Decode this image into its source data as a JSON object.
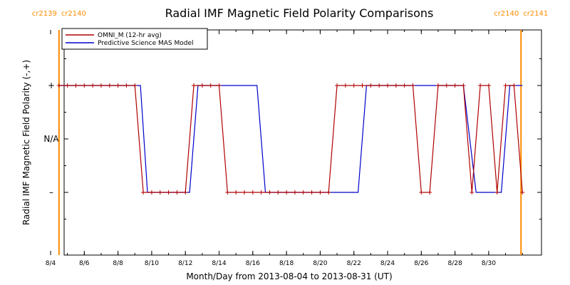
{
  "chart_data": {
    "type": "line",
    "title": "Radial IMF Magnetic Field Polarity Comparisons",
    "xlabel": "Month/Day from 2013-08-04 to 2013-08-31 (UT)",
    "ylabel": "Radial IMF Magnetic Field Polarity (-,+)",
    "xlim": [
      "2013-08-04",
      "2013-09-01"
    ],
    "ylim": [
      -2,
      2
    ],
    "x_ticks": [
      {
        "date": "2013-08-04",
        "label": "8/4"
      },
      {
        "date": "2013-08-06",
        "label": "8/6"
      },
      {
        "date": "2013-08-08",
        "label": "8/8"
      },
      {
        "date": "2013-08-10",
        "label": "8/10"
      },
      {
        "date": "2013-08-12",
        "label": "8/12"
      },
      {
        "date": "2013-08-14",
        "label": "8/14"
      },
      {
        "date": "2013-08-16",
        "label": "8/16"
      },
      {
        "date": "2013-08-18",
        "label": "8/18"
      },
      {
        "date": "2013-08-20",
        "label": "8/20"
      },
      {
        "date": "2013-08-22",
        "label": "8/22"
      },
      {
        "date": "2013-08-24",
        "label": "8/24"
      },
      {
        "date": "2013-08-26",
        "label": "8/26"
      },
      {
        "date": "2013-08-28",
        "label": "8/28"
      },
      {
        "date": "2013-08-30",
        "label": "8/30"
      }
    ],
    "y_ticks": [
      {
        "value": 1,
        "label": "+"
      },
      {
        "value": 0,
        "label": "N/A"
      },
      {
        "value": -1,
        "label": "–"
      }
    ],
    "carrington_markers": [
      {
        "date": "2013-08-04T12:00",
        "label_left": "cr2139",
        "label_right": "cr2140",
        "color": "#ff8c00"
      },
      {
        "date": "2013-08-31T22:00",
        "label_left": "cr2140",
        "label_right": "cr2141",
        "color": "#ff8c00"
      }
    ],
    "legend_position": "top-left",
    "series": [
      {
        "name": "OMNI_M (12-hr avg)",
        "color": "#b00000",
        "markers": true,
        "points": [
          [
            "2013-08-04T12:00",
            1
          ],
          [
            "2013-08-05T00:00",
            1
          ],
          [
            "2013-08-05T12:00",
            1
          ],
          [
            "2013-08-06T00:00",
            1
          ],
          [
            "2013-08-06T12:00",
            1
          ],
          [
            "2013-08-07T00:00",
            1
          ],
          [
            "2013-08-07T12:00",
            1
          ],
          [
            "2013-08-08T00:00",
            1
          ],
          [
            "2013-08-08T12:00",
            1
          ],
          [
            "2013-08-09T00:00",
            1
          ],
          [
            "2013-08-09T12:00",
            -1
          ],
          [
            "2013-08-10T00:00",
            -1
          ],
          [
            "2013-08-10T12:00",
            -1
          ],
          [
            "2013-08-11T00:00",
            -1
          ],
          [
            "2013-08-11T12:00",
            -1
          ],
          [
            "2013-08-12T00:00",
            -1
          ],
          [
            "2013-08-12T12:00",
            1
          ],
          [
            "2013-08-13T00:00",
            1
          ],
          [
            "2013-08-13T12:00",
            1
          ],
          [
            "2013-08-14T00:00",
            1
          ],
          [
            "2013-08-14T12:00",
            -1
          ],
          [
            "2013-08-15T00:00",
            -1
          ],
          [
            "2013-08-15T12:00",
            -1
          ],
          [
            "2013-08-16T00:00",
            -1
          ],
          [
            "2013-08-16T12:00",
            -1
          ],
          [
            "2013-08-17T00:00",
            -1
          ],
          [
            "2013-08-17T12:00",
            -1
          ],
          [
            "2013-08-18T00:00",
            -1
          ],
          [
            "2013-08-18T12:00",
            -1
          ],
          [
            "2013-08-19T00:00",
            -1
          ],
          [
            "2013-08-19T12:00",
            -1
          ],
          [
            "2013-08-20T00:00",
            -1
          ],
          [
            "2013-08-20T12:00",
            -1
          ],
          [
            "2013-08-21T00:00",
            1
          ],
          [
            "2013-08-21T12:00",
            1
          ],
          [
            "2013-08-22T00:00",
            1
          ],
          [
            "2013-08-22T12:00",
            1
          ],
          [
            "2013-08-23T00:00",
            1
          ],
          [
            "2013-08-23T12:00",
            1
          ],
          [
            "2013-08-24T00:00",
            1
          ],
          [
            "2013-08-24T12:00",
            1
          ],
          [
            "2013-08-25T00:00",
            1
          ],
          [
            "2013-08-25T12:00",
            1
          ],
          [
            "2013-08-26T00:00",
            -1
          ],
          [
            "2013-08-26T12:00",
            -1
          ],
          [
            "2013-08-27T00:00",
            1
          ],
          [
            "2013-08-27T12:00",
            1
          ],
          [
            "2013-08-28T00:00",
            1
          ],
          [
            "2013-08-28T12:00",
            1
          ],
          [
            "2013-08-29T00:00",
            -1
          ],
          [
            "2013-08-29T12:00",
            1
          ],
          [
            "2013-08-30T00:00",
            1
          ],
          [
            "2013-08-30T12:00",
            -1
          ],
          [
            "2013-08-31T00:00",
            1
          ],
          [
            "2013-08-31T12:00",
            1
          ],
          [
            "2013-09-01T00:00",
            -1
          ]
        ]
      },
      {
        "name": "Predictive Science MAS Model",
        "color": "#0000cc",
        "markers": false,
        "points": [
          [
            "2013-08-04T12:00",
            1
          ],
          [
            "2013-08-09T08:00",
            1
          ],
          [
            "2013-08-09T18:00",
            -1
          ],
          [
            "2013-08-12T06:00",
            -1
          ],
          [
            "2013-08-12T18:00",
            1
          ],
          [
            "2013-08-16T06:00",
            1
          ],
          [
            "2013-08-16T18:00",
            -1
          ],
          [
            "2013-08-22T06:00",
            -1
          ],
          [
            "2013-08-22T18:00",
            1
          ],
          [
            "2013-08-28T12:00",
            1
          ],
          [
            "2013-08-29T06:00",
            -1
          ],
          [
            "2013-08-30T18:00",
            -1
          ],
          [
            "2013-08-31T06:00",
            1
          ],
          [
            "2013-09-01T00:00",
            1
          ]
        ]
      }
    ]
  }
}
